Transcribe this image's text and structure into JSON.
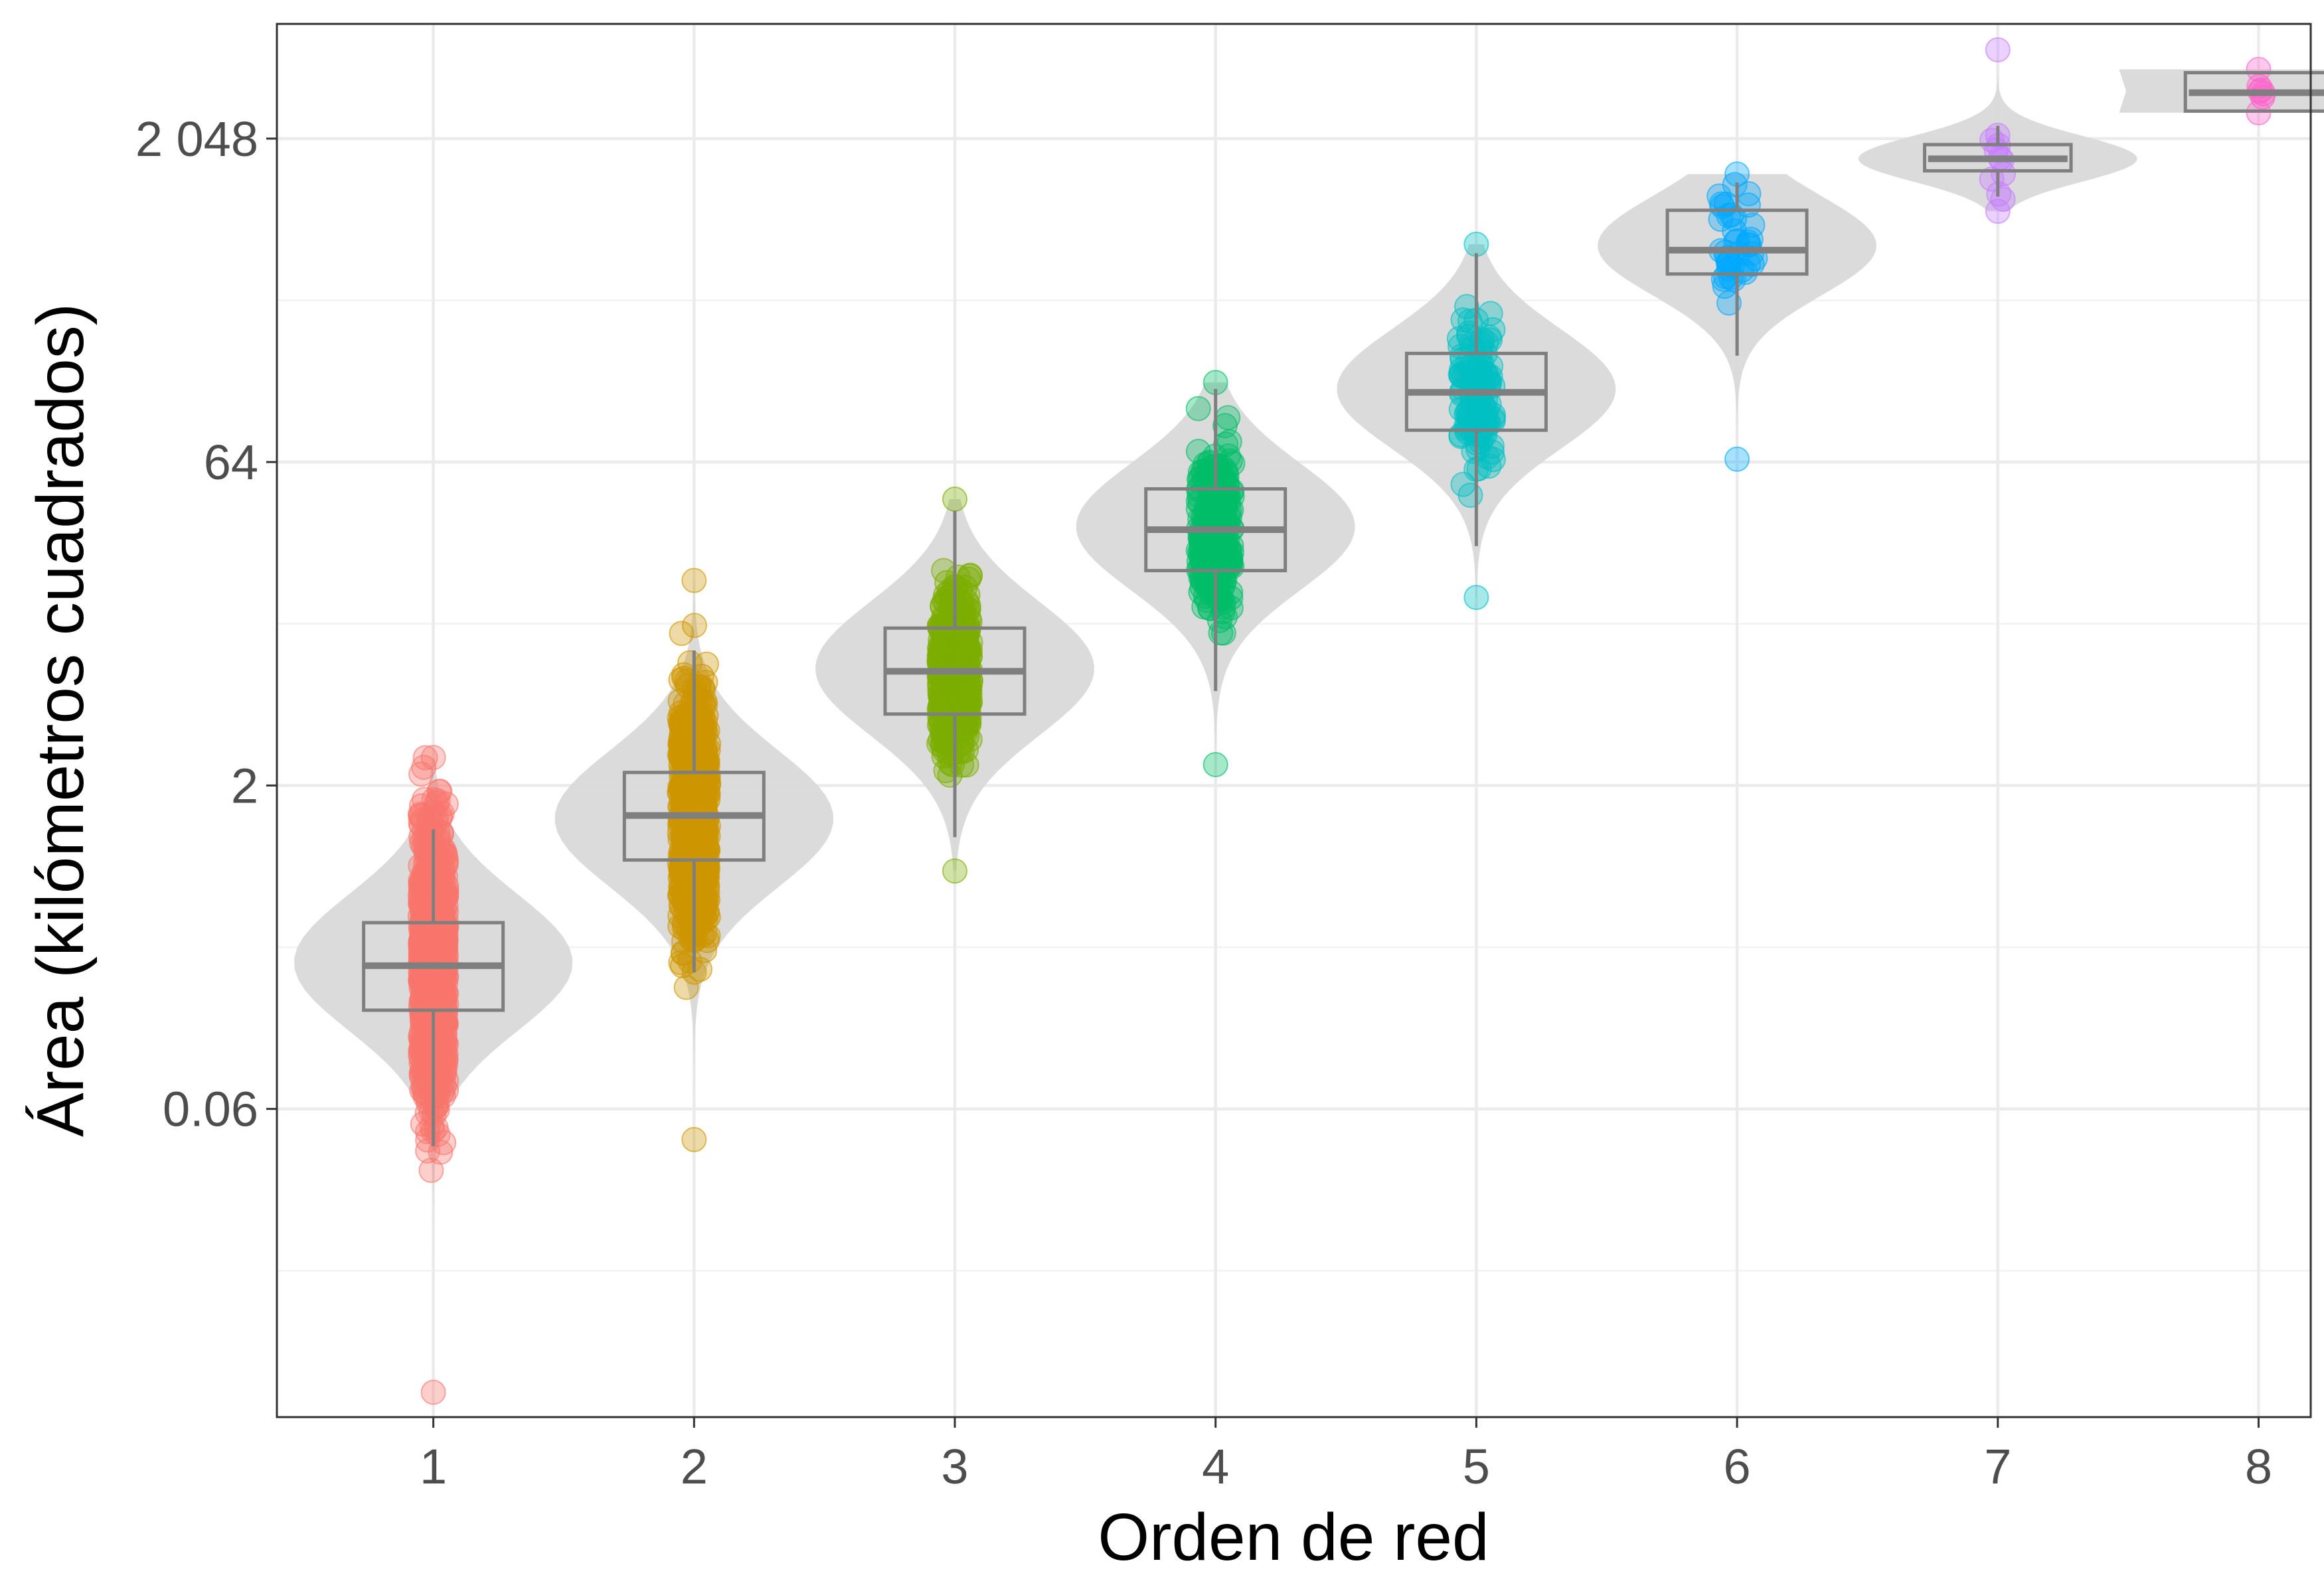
{
  "chart_data": {
    "type": "violin",
    "xlabel": "Orden de red",
    "ylabel": "Área (kilómetros cuadrados)",
    "y_scale": "log2",
    "y_tick_labels": [
      "0.06",
      "2",
      "64",
      "2 048"
    ],
    "y_tick_values": [
      0.0625,
      2,
      64,
      2048
    ],
    "ylim": [
      0.0023,
      7000
    ],
    "categories": [
      "1",
      "2",
      "3",
      "4",
      "5",
      "6",
      "7",
      "8"
    ],
    "grid": true,
    "legend": "none",
    "series": [
      {
        "category": "1",
        "color": "#F8766D",
        "min": 0.003,
        "q1": 0.18,
        "median": 0.29,
        "q3": 0.46,
        "max": 2.7,
        "whisker_low": 0.042,
        "whisker_high": 1.25,
        "violin_widest": 0.3
      },
      {
        "category": "2",
        "color": "#CD9600",
        "min": 0.045,
        "q1": 0.9,
        "median": 1.45,
        "q3": 2.3,
        "max": 18,
        "whisker_low": 0.27,
        "whisker_high": 8.5,
        "violin_widest": 1.4
      },
      {
        "category": "3",
        "color": "#7CAE00",
        "min": 0.8,
        "q1": 4.3,
        "median": 6.8,
        "q3": 10.8,
        "max": 43,
        "whisker_low": 1.15,
        "whisker_high": 38,
        "violin_widest": 7
      },
      {
        "category": "4",
        "color": "#00BE67",
        "min": 2.5,
        "q1": 20,
        "median": 31,
        "q3": 48,
        "max": 150,
        "whisker_low": 5.5,
        "whisker_high": 140,
        "violin_widest": 32
      },
      {
        "category": "5",
        "color": "#00BFC4",
        "min": 15,
        "q1": 90,
        "median": 135,
        "q3": 205,
        "max": 660,
        "whisker_low": 26,
        "whisker_high": 600,
        "violin_widest": 140
      },
      {
        "category": "6",
        "color": "#00A9FF",
        "min": 66,
        "q1": 480,
        "median": 620,
        "q3": 950,
        "max": 1400,
        "whisker_low": 200,
        "whisker_high": 1280,
        "violin_widest": 650
      },
      {
        "category": "7",
        "color": "#C77CFF",
        "min": 940,
        "q1": 1450,
        "median": 1650,
        "q3": 1920,
        "max": 5300,
        "whisker_low": 1100,
        "whisker_high": 2350,
        "violin_widest": 1650
      },
      {
        "category": "8",
        "color": "#FF61CC",
        "min": 2700,
        "q1": 2750,
        "median": 3350,
        "q3": 4150,
        "max": 4300,
        "whisker_low": 2750,
        "whisker_high": 4150,
        "violin_widest": 3400
      }
    ]
  }
}
